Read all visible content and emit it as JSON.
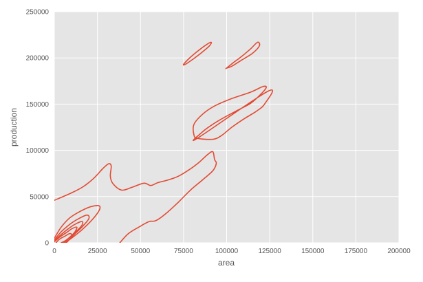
{
  "chart_data": {
    "type": "kde-contour",
    "title": "",
    "xlabel": "area",
    "ylabel": "production",
    "xlim": [
      0,
      200000
    ],
    "ylim": [
      0,
      250000
    ],
    "grid": true,
    "line_color": "#e24a33",
    "background_color": "#e5e5e5",
    "x_ticks": [
      {
        "value": 0,
        "label": "0"
      },
      {
        "value": 25000,
        "label": "25000"
      },
      {
        "value": 50000,
        "label": "50000"
      },
      {
        "value": 75000,
        "label": "75000"
      },
      {
        "value": 100000,
        "label": "100000"
      },
      {
        "value": 125000,
        "label": "125000"
      },
      {
        "value": 150000,
        "label": "150000"
      },
      {
        "value": 175000,
        "label": "175000"
      },
      {
        "value": 200000,
        "label": "200000"
      }
    ],
    "y_ticks": [
      {
        "value": 0,
        "label": "0"
      },
      {
        "value": 50000,
        "label": "50000"
      },
      {
        "value": 100000,
        "label": "100000"
      },
      {
        "value": 150000,
        "label": "150000"
      },
      {
        "value": 200000,
        "label": "200000"
      },
      {
        "value": 250000,
        "label": "250000"
      }
    ],
    "contours": [
      {
        "name": "outer-contour",
        "closed": false,
        "points": [
          [
            0,
            46000
          ],
          [
            10000,
            54000
          ],
          [
            17000,
            61000
          ],
          [
            23000,
            70000
          ],
          [
            28000,
            80000
          ],
          [
            31500,
            85500
          ],
          [
            33000,
            83000
          ],
          [
            32500,
            72000
          ],
          [
            34000,
            64000
          ],
          [
            39000,
            57000
          ],
          [
            45000,
            60000
          ],
          [
            52000,
            64500
          ],
          [
            56000,
            62000
          ],
          [
            60000,
            65000
          ],
          [
            66000,
            68000
          ],
          [
            72000,
            72000
          ],
          [
            79000,
            80000
          ],
          [
            84000,
            87000
          ],
          [
            89000,
            95500
          ],
          [
            92000,
            98500
          ],
          [
            93000,
            90000
          ],
          [
            94000,
            86000
          ],
          [
            92000,
            78000
          ],
          [
            86000,
            68000
          ],
          [
            79000,
            57000
          ],
          [
            72000,
            44000
          ],
          [
            65000,
            32000
          ],
          [
            59000,
            24000
          ],
          [
            55000,
            23000
          ],
          [
            50000,
            18000
          ],
          [
            43000,
            10000
          ],
          [
            38000,
            0
          ]
        ]
      },
      {
        "name": "middle-contour",
        "closed": true,
        "points": [
          [
            83000,
            113000
          ],
          [
            86000,
            120000
          ],
          [
            91000,
            127000
          ],
          [
            98000,
            135000
          ],
          [
            106000,
            143000
          ],
          [
            114000,
            151000
          ],
          [
            120000,
            161000
          ],
          [
            123000,
            168000
          ],
          [
            121000,
            169000
          ],
          [
            114000,
            163000
          ],
          [
            103000,
            156000
          ],
          [
            93000,
            148000
          ],
          [
            86000,
            139000
          ],
          [
            81000,
            128000
          ],
          [
            81000,
            117000
          ],
          [
            83000,
            113000
          ],
          [
            92000,
            112000
          ],
          [
            97000,
            116000
          ],
          [
            103000,
            125000
          ],
          [
            110000,
            134000
          ],
          [
            117000,
            142000
          ],
          [
            122000,
            150000
          ],
          [
            124000,
            164000
          ]
        ]
      },
      {
        "name": "upper-left-island",
        "closed": true,
        "points": [
          [
            75000,
            193000
          ],
          [
            78000,
            199000
          ],
          [
            83000,
            207000
          ],
          [
            88000,
            214000
          ],
          [
            91000,
            217000
          ],
          [
            90000,
            213000
          ],
          [
            85000,
            205000
          ],
          [
            80000,
            198000
          ],
          [
            76000,
            193000
          ]
        ]
      },
      {
        "name": "upper-right-island",
        "closed": true,
        "points": [
          [
            100000,
            189000
          ],
          [
            104000,
            195000
          ],
          [
            109000,
            202000
          ],
          [
            114000,
            210000
          ],
          [
            118000,
            217000
          ],
          [
            119000,
            213000
          ],
          [
            115000,
            205000
          ],
          [
            109000,
            198000
          ],
          [
            103000,
            191000
          ],
          [
            100000,
            189000
          ]
        ]
      },
      {
        "name": "inner-contour-1",
        "closed": false,
        "points": [
          [
            0,
            5000
          ],
          [
            4000,
            17000
          ],
          [
            9000,
            27000
          ],
          [
            15000,
            34000
          ],
          [
            21000,
            39000
          ],
          [
            26000,
            40000
          ],
          [
            26000,
            35000
          ],
          [
            22000,
            25000
          ],
          [
            16000,
            14000
          ],
          [
            10000,
            5000
          ],
          [
            6000,
            0
          ]
        ]
      },
      {
        "name": "inner-contour-2",
        "closed": false,
        "points": [
          [
            0,
            3000
          ],
          [
            4000,
            12000
          ],
          [
            9000,
            20000
          ],
          [
            14000,
            26000
          ],
          [
            19000,
            30000
          ],
          [
            20000,
            26000
          ],
          [
            16000,
            17000
          ],
          [
            11000,
            8000
          ],
          [
            7000,
            0
          ]
        ]
      },
      {
        "name": "inner-contour-3",
        "closed": false,
        "points": [
          [
            0,
            2000
          ],
          [
            4000,
            9000
          ],
          [
            8000,
            15000
          ],
          [
            12000,
            20000
          ],
          [
            16000,
            23000
          ],
          [
            16000,
            19000
          ],
          [
            12000,
            11000
          ],
          [
            8000,
            4000
          ],
          [
            6000,
            0
          ]
        ]
      },
      {
        "name": "inner-contour-4",
        "closed": false,
        "points": [
          [
            0,
            1000
          ],
          [
            3000,
            6000
          ],
          [
            7000,
            11000
          ],
          [
            10000,
            15000
          ],
          [
            13000,
            17000
          ],
          [
            12000,
            12000
          ],
          [
            9000,
            6000
          ],
          [
            5000,
            0
          ]
        ]
      },
      {
        "name": "inner-contour-5",
        "closed": false,
        "points": [
          [
            1000,
            0
          ],
          [
            3000,
            4000
          ],
          [
            6000,
            7000
          ],
          [
            9000,
            10000
          ],
          [
            10000,
            8000
          ],
          [
            7000,
            3000
          ],
          [
            4000,
            0
          ]
        ]
      }
    ]
  }
}
